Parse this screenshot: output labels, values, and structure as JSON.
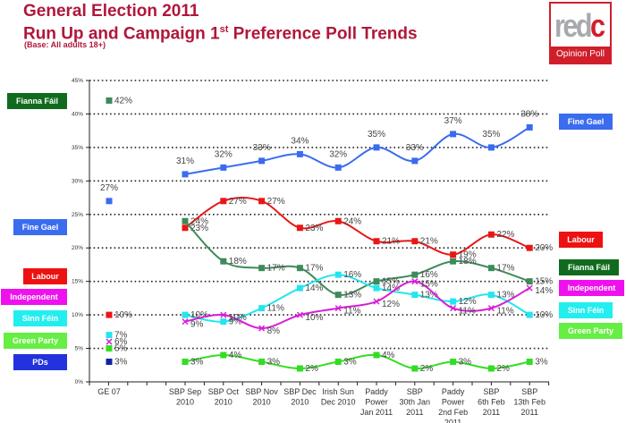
{
  "header": {
    "title_line1": "General Election 2011",
    "title_line2_pre": "Run Up and Campaign 1",
    "title_line2_sup": "st",
    "title_line2_post": " Preference Poll Trends",
    "subtitle": "(Base: All adults 18+)"
  },
  "logo": {
    "word_main": "red",
    "word_accent": "c",
    "band_text": "Opinion Poll",
    "color": "#d01f2b"
  },
  "left_legend": [
    {
      "label": "Fianna Fáil",
      "color": "#116b1e"
    },
    {
      "label": "Fine Gael",
      "color": "#3a6cf0"
    },
    {
      "label": "Labour",
      "color": "#ee1111"
    },
    {
      "label": "Independent",
      "color": "#ee11ee"
    },
    {
      "label": "Sinn Féin",
      "color": "#22eef0"
    },
    {
      "label": "Green Party",
      "color": "#66ee44"
    },
    {
      "label": "PDs",
      "color": "#2233dd"
    }
  ],
  "right_legend": [
    {
      "label": "Fine Gael",
      "color": "#3a6cf0"
    },
    {
      "label": "Labour",
      "color": "#ee1111"
    },
    {
      "label": "Fianna Fáil",
      "color": "#116b1e"
    },
    {
      "label": "Independent",
      "color": "#ee11ee"
    },
    {
      "label": "Sinn Féin",
      "color": "#22eef0"
    },
    {
      "label": "Green Party",
      "color": "#66ee44"
    }
  ],
  "chart_data": {
    "type": "line",
    "title": "General Election 2011 Run Up and Campaign 1st Preference Poll Trends",
    "subtitle": "(Base: All adults 18+)",
    "xlabel": "",
    "ylabel": "",
    "ylim": [
      0,
      45
    ],
    "yticks": [
      "0%",
      "5%",
      "10%",
      "15%",
      "20%",
      "25%",
      "30%",
      "35%",
      "40%",
      "45%"
    ],
    "grid": "horizontal dotted",
    "categories": [
      "GE 07",
      "SBP Sep 2010",
      "SBP Oct 2010",
      "SBP Nov 2010",
      "SBP Dec 2010",
      "Irish Sun Dec 2010",
      "Paddy Power Jan 2011",
      "SBP 30th Jan 2011",
      "Paddy Power 2nd Feb 2011",
      "SBP 6th Feb 2011",
      "SBP 13th Feb 2011"
    ],
    "category_lines": [
      [
        "GE 07"
      ],
      [
        "SBP Sep",
        "2010"
      ],
      [
        "SBP Oct",
        "2010"
      ],
      [
        "SBP Nov",
        "2010"
      ],
      [
        "SBP Dec",
        "2010"
      ],
      [
        "Irish Sun",
        "Dec 2010"
      ],
      [
        "Paddy",
        "Power",
        "Jan 2011"
      ],
      [
        "SBP",
        "30th Jan",
        "2011"
      ],
      [
        "Paddy",
        "Power",
        "2nd Feb",
        "2011"
      ],
      [
        "SBP",
        "6th Feb",
        "2011"
      ],
      [
        "SBP",
        "13th Feb",
        "2011"
      ]
    ],
    "series": [
      {
        "name": "Fine Gael",
        "color": "#3a6cf0",
        "marker": "square",
        "ge07": 27,
        "values": [
          31,
          32,
          33,
          34,
          32,
          35,
          33,
          37,
          35,
          38
        ],
        "labels": [
          "31%",
          "32%",
          "33%",
          "34%",
          "32%",
          "35%",
          "33%",
          "37%",
          "35%",
          "38%"
        ]
      },
      {
        "name": "Labour",
        "color": "#e81717",
        "marker": "square",
        "ge07": 10,
        "values": [
          23,
          27,
          27,
          23,
          24,
          21,
          21,
          19,
          22,
          20
        ],
        "labels": [
          "23%",
          "27%",
          "27%",
          "23%",
          "24%",
          "21%",
          "21%",
          "19%",
          "22%",
          "20%"
        ]
      },
      {
        "name": "Fianna Fáil",
        "color": "#3d8a5a",
        "marker": "square",
        "ge07": 42,
        "values": [
          24,
          18,
          17,
          17,
          13,
          15,
          16,
          18,
          17,
          15
        ],
        "labels": [
          "24%",
          "18%",
          "17%",
          "17%",
          "13%",
          "15%",
          "16%",
          "18%",
          "17%",
          "15%"
        ]
      },
      {
        "name": "Sinn Féin",
        "color": "#22e6ee",
        "marker": "square",
        "ge07": 7,
        "values": [
          10,
          9,
          11,
          14,
          16,
          14,
          13,
          12,
          13,
          10
        ],
        "labels": [
          "10%",
          "9%",
          "11%",
          "14%",
          "16%",
          "14%",
          "13%",
          "12%",
          "13%",
          "10%"
        ]
      },
      {
        "name": "Independent",
        "color": "#d61ed6",
        "marker": "x",
        "ge07": 6,
        "values": [
          9,
          10,
          8,
          10,
          11,
          12,
          15,
          11,
          11,
          14
        ],
        "labels": [
          "9%",
          "10%",
          "8%",
          "10%",
          "11%",
          "12%",
          "15%",
          "11%",
          "11%",
          "14%"
        ]
      },
      {
        "name": "Green Party",
        "color": "#33dd22",
        "marker": "square",
        "ge07": 5,
        "values": [
          3,
          4,
          3,
          2,
          3,
          4,
          2,
          3,
          2,
          3
        ],
        "labels": [
          "3%",
          "4%",
          "3%",
          "2%",
          "3%",
          "4%",
          "2%",
          "3%",
          "2%",
          "3%"
        ]
      },
      {
        "name": "PDs",
        "color": "#1122aa",
        "marker": "square",
        "ge07": 3,
        "values": [],
        "labels": []
      }
    ],
    "ge07_labels": {
      "Fine Gael": "27%",
      "Labour": "10%",
      "Fianna Fáil": "42%",
      "Sinn Féin": "7%",
      "Independent": "6%",
      "Green Party": "5%",
      "PDs": "3%"
    },
    "legend": "left and right side labels"
  }
}
